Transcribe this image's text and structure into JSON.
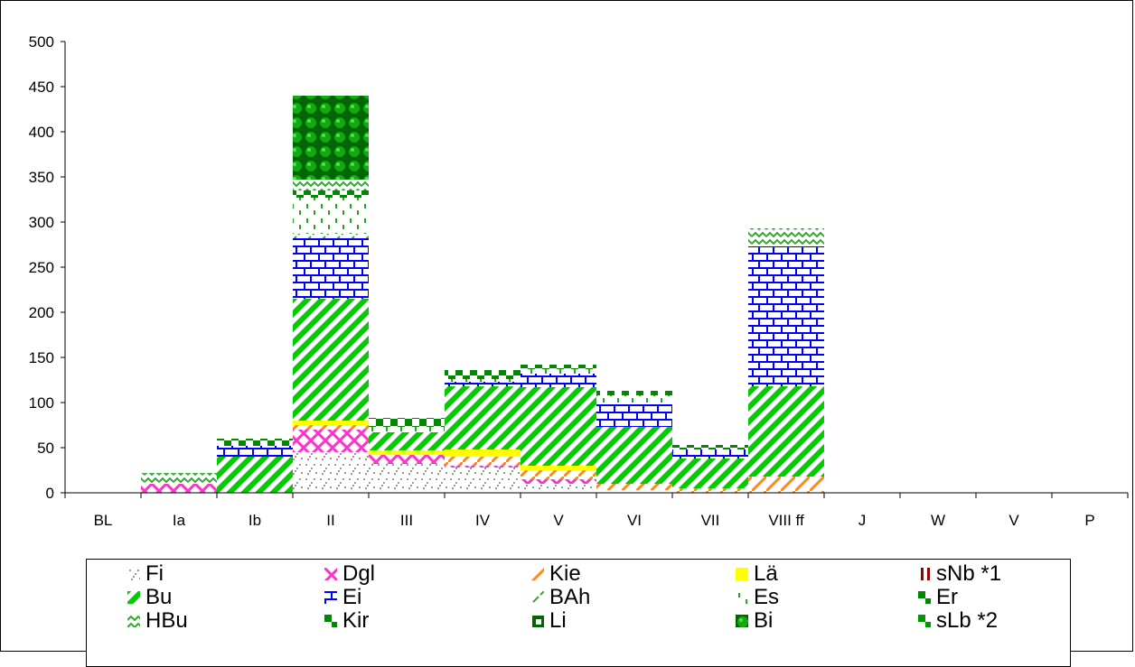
{
  "chart_data": {
    "type": "bar",
    "stacked": true,
    "categories": [
      "BL",
      "Ia",
      "Ib",
      "II",
      "III",
      "IV",
      "V",
      "VI",
      "VII",
      "VIII ff",
      "J",
      "W",
      "V",
      "P"
    ],
    "ylim": [
      0,
      500
    ],
    "yticks": [
      0,
      50,
      100,
      150,
      200,
      250,
      300,
      350,
      400,
      450,
      500
    ],
    "grid": false,
    "legend_position": "bottom",
    "series": [
      {
        "name": "Fi",
        "color": "#9a9a9a",
        "pattern": "dots",
        "values": [
          0,
          0,
          0,
          45,
          32,
          28,
          10,
          3,
          0,
          0,
          0,
          0,
          0,
          0
        ]
      },
      {
        "name": "Dgl",
        "color": "#ff33cc",
        "pattern": "cross",
        "values": [
          0,
          10,
          0,
          25,
          10,
          2,
          5,
          0,
          0,
          0,
          0,
          0,
          0,
          0
        ]
      },
      {
        "name": "Kie",
        "color": "#ff8a1a",
        "pattern": "diag",
        "values": [
          0,
          0,
          0,
          5,
          0,
          10,
          10,
          7,
          5,
          18,
          0,
          0,
          0,
          0
        ]
      },
      {
        "name": "Lä",
        "color": "#ffff00",
        "pattern": "solid",
        "values": [
          0,
          0,
          0,
          5,
          5,
          8,
          5,
          0,
          0,
          0,
          0,
          0,
          0,
          0
        ]
      },
      {
        "name": "sNb *1",
        "color": "#990000",
        "pattern": "bars",
        "values": [
          0,
          0,
          0,
          0,
          0,
          0,
          0,
          0,
          0,
          0,
          0,
          0,
          0,
          0
        ]
      },
      {
        "name": "Bu",
        "color": "#00cc00",
        "pattern": "diagwide",
        "values": [
          0,
          0,
          40,
          135,
          20,
          70,
          87,
          63,
          33,
          100,
          0,
          0,
          0,
          0
        ]
      },
      {
        "name": "Ei",
        "color": "#0000ff",
        "pattern": "brick",
        "values": [
          0,
          0,
          12,
          67,
          0,
          5,
          15,
          25,
          10,
          155,
          0,
          0,
          0,
          0
        ]
      },
      {
        "name": "BAh",
        "color": "#33aa33",
        "pattern": "dash",
        "values": [
          0,
          0,
          0,
          5,
          0,
          0,
          0,
          0,
          0,
          0,
          0,
          0,
          0,
          0
        ]
      },
      {
        "name": "Es",
        "color": "#22aa22",
        "pattern": "dashvert",
        "values": [
          0,
          0,
          0,
          40,
          6,
          3,
          5,
          10,
          0,
          0,
          0,
          0,
          0,
          0
        ]
      },
      {
        "name": "Er",
        "color": "#008800",
        "pattern": "checker",
        "values": [
          0,
          0,
          8,
          8,
          10,
          10,
          5,
          5,
          5,
          0,
          0,
          0,
          0,
          0
        ]
      },
      {
        "name": "HBu",
        "color": "#33aa33",
        "pattern": "wave",
        "values": [
          0,
          12,
          0,
          12,
          0,
          0,
          0,
          0,
          0,
          20,
          0,
          0,
          0,
          0
        ]
      },
      {
        "name": "Kir",
        "color": "#008800",
        "pattern": "checker2",
        "values": [
          0,
          0,
          0,
          0,
          0,
          0,
          0,
          0,
          0,
          0,
          0,
          0,
          0,
          0
        ]
      },
      {
        "name": "Li",
        "color": "#006600",
        "pattern": "block",
        "values": [
          0,
          0,
          0,
          0,
          0,
          0,
          0,
          0,
          0,
          0,
          0,
          0,
          0,
          0
        ]
      },
      {
        "name": "Bi",
        "color": "#006600",
        "pattern": "circles",
        "values": [
          0,
          0,
          0,
          93,
          0,
          0,
          0,
          0,
          0,
          0,
          0,
          0,
          0,
          0
        ]
      },
      {
        "name": "sLb *2",
        "color": "#009900",
        "pattern": "checker3",
        "values": [
          0,
          0,
          0,
          0,
          0,
          0,
          0,
          0,
          0,
          0,
          0,
          0,
          0,
          0
        ]
      }
    ]
  }
}
